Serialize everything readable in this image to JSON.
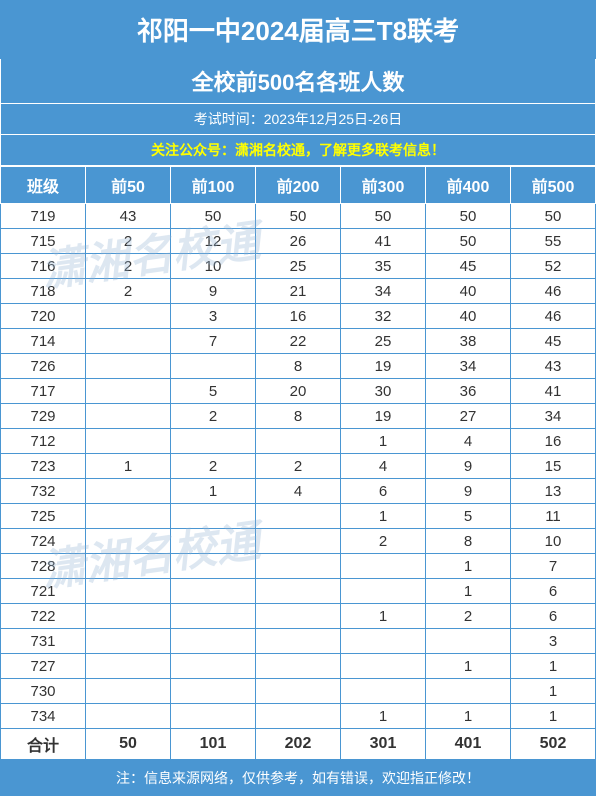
{
  "header": {
    "title": "祁阳一中2024届高三T8联考",
    "subtitle": "全校前500名各班人数",
    "date": "考试时间：2023年12月25日-26日",
    "notice": "关注公众号：潇湘名校通，了解更多联考信息！"
  },
  "watermark": "潇湘名校通",
  "table": {
    "columns": [
      "班级",
      "前50",
      "前100",
      "前200",
      "前300",
      "前400",
      "前500"
    ],
    "rows": [
      [
        "719",
        "43",
        "50",
        "50",
        "50",
        "50",
        "50"
      ],
      [
        "715",
        "2",
        "12",
        "26",
        "41",
        "50",
        "55"
      ],
      [
        "716",
        "2",
        "10",
        "25",
        "35",
        "45",
        "52"
      ],
      [
        "718",
        "2",
        "9",
        "21",
        "34",
        "40",
        "46"
      ],
      [
        "720",
        "",
        "3",
        "16",
        "32",
        "40",
        "46"
      ],
      [
        "714",
        "",
        "7",
        "22",
        "25",
        "38",
        "45"
      ],
      [
        "726",
        "",
        "",
        "8",
        "19",
        "34",
        "43"
      ],
      [
        "717",
        "",
        "5",
        "20",
        "30",
        "36",
        "41"
      ],
      [
        "729",
        "",
        "2",
        "8",
        "19",
        "27",
        "34"
      ],
      [
        "712",
        "",
        "",
        "",
        "1",
        "4",
        "16"
      ],
      [
        "723",
        "1",
        "2",
        "2",
        "4",
        "9",
        "15"
      ],
      [
        "732",
        "",
        "1",
        "4",
        "6",
        "9",
        "13"
      ],
      [
        "725",
        "",
        "",
        "",
        "1",
        "5",
        "11"
      ],
      [
        "724",
        "",
        "",
        "",
        "2",
        "8",
        "10"
      ],
      [
        "728",
        "",
        "",
        "",
        "",
        "1",
        "7"
      ],
      [
        "721",
        "",
        "",
        "",
        "",
        "1",
        "6"
      ],
      [
        "722",
        "",
        "",
        "",
        "1",
        "2",
        "6"
      ],
      [
        "731",
        "",
        "",
        "",
        "",
        "",
        "3"
      ],
      [
        "727",
        "",
        "",
        "",
        "",
        "1",
        "1"
      ],
      [
        "730",
        "",
        "",
        "",
        "",
        "",
        "1"
      ],
      [
        "734",
        "",
        "",
        "",
        "1",
        "1",
        "1"
      ]
    ],
    "total": [
      "合计",
      "50",
      "101",
      "202",
      "301",
      "401",
      "502"
    ]
  },
  "footer": "注：信息来源网络，仅供参考，如有错误，欢迎指正修改！",
  "colors": {
    "header_bg": "#4a96d2",
    "header_text": "#ffffff",
    "notice_text": "#ffff00",
    "border": "#4a96d2",
    "cell_text": "#333333"
  }
}
